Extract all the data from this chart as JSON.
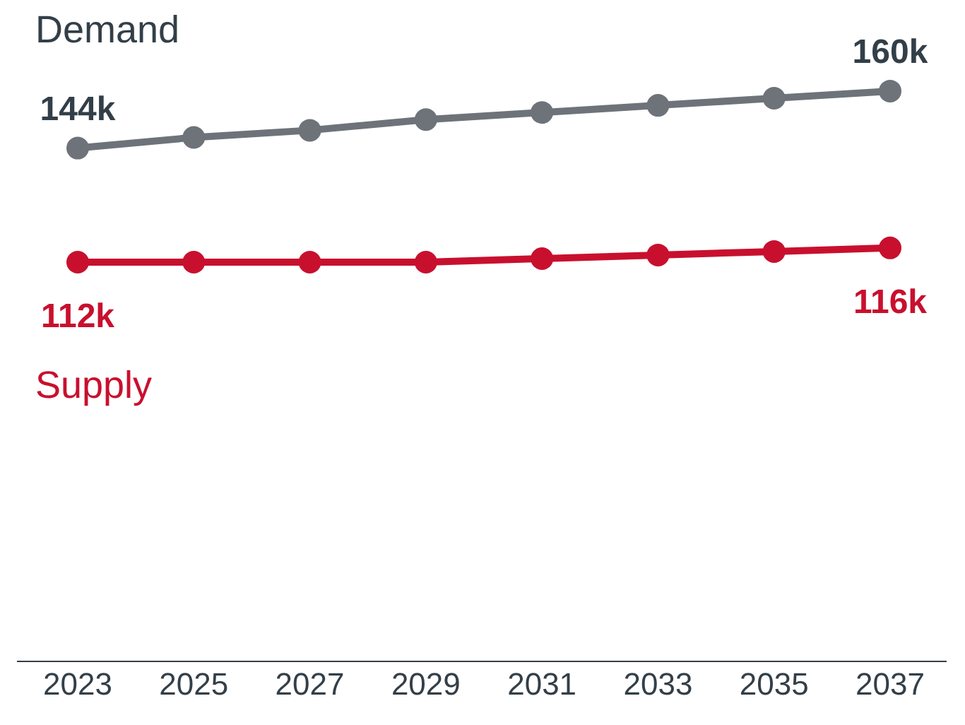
{
  "chart_data": {
    "type": "line",
    "categories": [
      "2023",
      "2025",
      "2027",
      "2029",
      "2031",
      "2033",
      "2035",
      "2037"
    ],
    "marker": "circle",
    "legend": false,
    "series": [
      {
        "name": "Demand",
        "color": "#6d7379",
        "values": [
          144,
          147,
          149,
          152,
          154,
          156,
          158,
          160
        ],
        "value_labels": [
          "144k",
          null,
          null,
          null,
          null,
          null,
          null,
          "160k"
        ]
      },
      {
        "name": "Supply",
        "color": "#c8102e",
        "values": [
          112,
          112,
          112,
          112,
          113,
          114,
          115,
          116
        ],
        "value_labels": [
          "112k",
          null,
          null,
          null,
          null,
          null,
          null,
          "116k"
        ]
      }
    ]
  }
}
